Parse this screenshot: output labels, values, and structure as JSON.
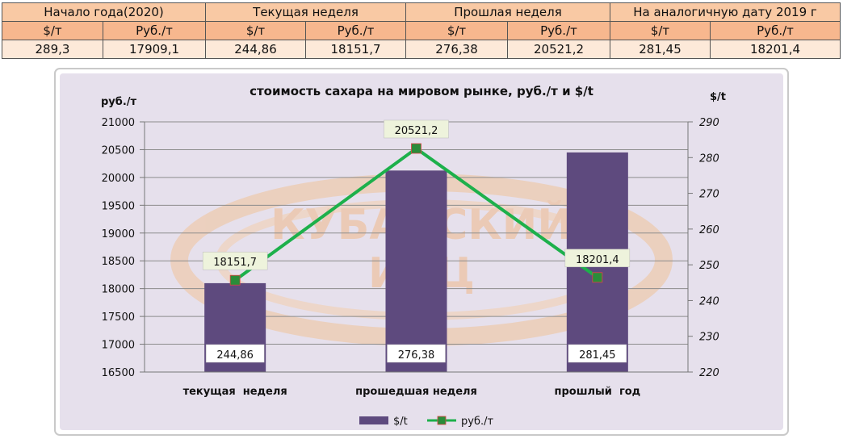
{
  "table": {
    "periods": [
      "Начало года(2020)",
      "Текущая неделя",
      "Прошлая неделя",
      "На аналогичную дату 2019 г"
    ],
    "units": [
      "$/т",
      "Руб./т",
      "$/т",
      "Руб./т",
      "$/т",
      "Руб./т",
      "$/т",
      "Руб./т"
    ],
    "values": [
      "289,3",
      "17909,1",
      "244,86",
      "18151,7",
      "276,38",
      "20521,2",
      "281,45",
      "18201,4"
    ]
  },
  "watermark": {
    "line1": "КУБАНСКИЙ",
    "line2": "ИАЦ"
  },
  "chart_data": {
    "type": "bar",
    "title": "стоимость сахара на мировом рынке, руб./т и $/t",
    "ylabel_left": "руб./т",
    "ylabel_right": "$/t",
    "categories": [
      "текущая  неделя",
      "прошедшая неделя",
      "прошлый  год"
    ],
    "ylim_left": [
      16500,
      21000
    ],
    "yticks_left": [
      "21000",
      "20500",
      "20000",
      "19500",
      "19000",
      "18500",
      "18000",
      "17500",
      "17000",
      "16500"
    ],
    "ylim_right": [
      220,
      290
    ],
    "yticks_right": [
      "290",
      "280",
      "270",
      "260",
      "250",
      "240",
      "230",
      "220"
    ],
    "grid": true,
    "legend_position": "bottom",
    "series": [
      {
        "name": "$/t",
        "type": "bar",
        "axis": "right",
        "values": [
          244.86,
          276.38,
          281.45
        ],
        "labels": [
          "244,86",
          "276,38",
          "281,45"
        ],
        "color": "#5e4a7e"
      },
      {
        "name": "руб./т",
        "type": "line",
        "axis": "left",
        "values": [
          18151.7,
          20521.2,
          18201.4
        ],
        "labels": [
          "18151,7",
          "20521,2",
          "18201,4"
        ],
        "color": "#1db04b",
        "marker_color": "#2a8c3a"
      }
    ]
  }
}
